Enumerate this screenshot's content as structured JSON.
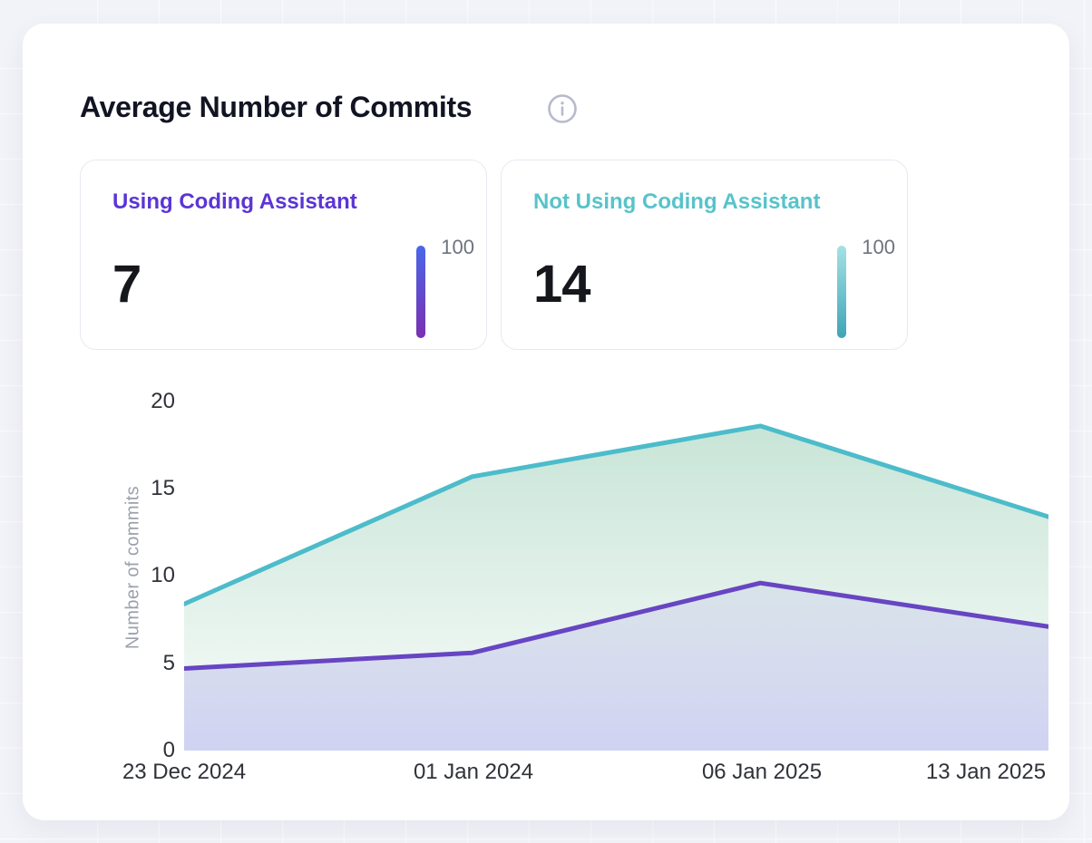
{
  "header": {
    "title": "Average Number of Commits"
  },
  "stat_cards": [
    {
      "label": "Using Coding Assistant",
      "value": "7",
      "scale_label": "100",
      "accent": "#5b35d5",
      "bar_top": "#4a67e9",
      "bar_bottom": "#7a30b0"
    },
    {
      "label": "Not Using Coding Assistant",
      "value": "14",
      "scale_label": "100",
      "accent": "#57c3cb",
      "bar_top": "#a5e2e6",
      "bar_bottom": "#3fa4b6"
    }
  ],
  "chart_data": {
    "type": "area",
    "title": "Average Number of Commits",
    "x": [
      "23 Dec 2024",
      "01 Jan 2024",
      "06 Jan 2025",
      "13 Jan 2025"
    ],
    "series": [
      {
        "name": "Not Using Coding Assistant",
        "values": [
          8.4,
          15.7,
          18.6,
          13.4
        ],
        "line_color": "#4cbcca",
        "fill_top": "rgba(110,185,150,0.38)",
        "fill_bottom": "rgba(110,185,150,0.03)"
      },
      {
        "name": "Using Coding Assistant",
        "values": [
          4.7,
          5.6,
          9.6,
          7.1
        ],
        "line_color": "#6745c3",
        "fill_top": "rgba(140,118,226,0.10)",
        "fill_bottom": "rgba(122,130,222,0.34)"
      }
    ],
    "ylabel": "Number of commits",
    "yticks": [
      0,
      5,
      10,
      15,
      20
    ],
    "ylim": [
      0,
      20
    ],
    "grid": false,
    "legend_position": "none"
  }
}
